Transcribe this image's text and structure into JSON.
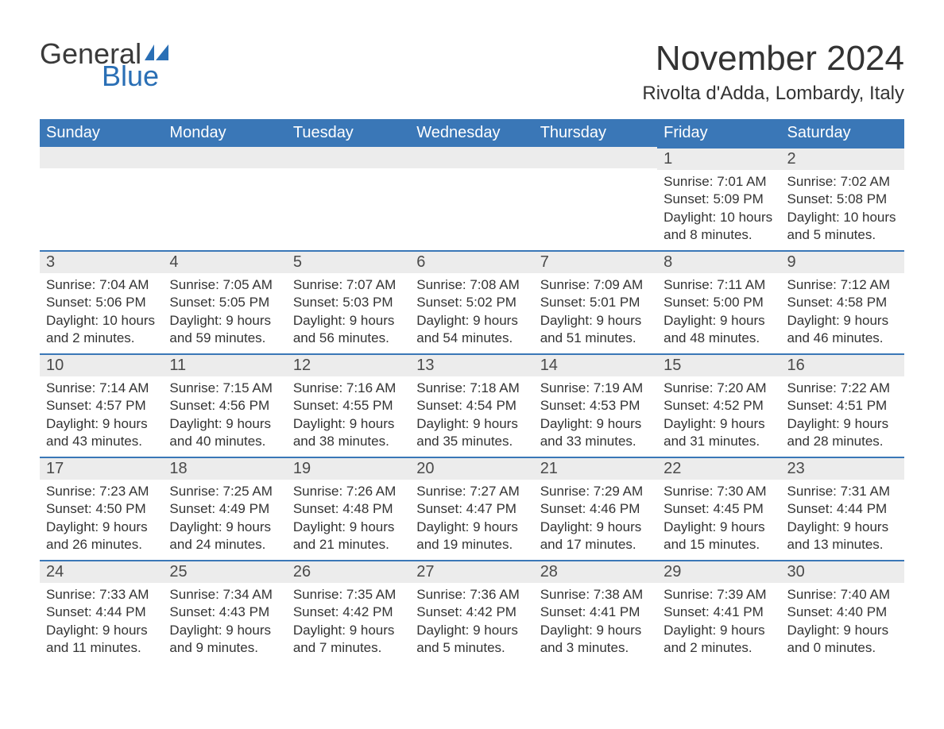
{
  "brand": {
    "part1": "General",
    "part2": "Blue",
    "icon_color": "#2a6fb5"
  },
  "title": "November 2024",
  "location": "Rivolta d'Adda, Lombardy, Italy",
  "colors": {
    "header_bg": "#3a77b7",
    "header_text": "#ffffff",
    "daynum_bg": "#ececec",
    "daynum_border": "#3a77b7",
    "text": "#333333"
  },
  "days_of_week": [
    "Sunday",
    "Monday",
    "Tuesday",
    "Wednesday",
    "Thursday",
    "Friday",
    "Saturday"
  ],
  "weeks": [
    [
      null,
      null,
      null,
      null,
      null,
      {
        "n": "1",
        "sunrise": "Sunrise: 7:01 AM",
        "sunset": "Sunset: 5:09 PM",
        "daylight": "Daylight: 10 hours and 8 minutes."
      },
      {
        "n": "2",
        "sunrise": "Sunrise: 7:02 AM",
        "sunset": "Sunset: 5:08 PM",
        "daylight": "Daylight: 10 hours and 5 minutes."
      }
    ],
    [
      {
        "n": "3",
        "sunrise": "Sunrise: 7:04 AM",
        "sunset": "Sunset: 5:06 PM",
        "daylight": "Daylight: 10 hours and 2 minutes."
      },
      {
        "n": "4",
        "sunrise": "Sunrise: 7:05 AM",
        "sunset": "Sunset: 5:05 PM",
        "daylight": "Daylight: 9 hours and 59 minutes."
      },
      {
        "n": "5",
        "sunrise": "Sunrise: 7:07 AM",
        "sunset": "Sunset: 5:03 PM",
        "daylight": "Daylight: 9 hours and 56 minutes."
      },
      {
        "n": "6",
        "sunrise": "Sunrise: 7:08 AM",
        "sunset": "Sunset: 5:02 PM",
        "daylight": "Daylight: 9 hours and 54 minutes."
      },
      {
        "n": "7",
        "sunrise": "Sunrise: 7:09 AM",
        "sunset": "Sunset: 5:01 PM",
        "daylight": "Daylight: 9 hours and 51 minutes."
      },
      {
        "n": "8",
        "sunrise": "Sunrise: 7:11 AM",
        "sunset": "Sunset: 5:00 PM",
        "daylight": "Daylight: 9 hours and 48 minutes."
      },
      {
        "n": "9",
        "sunrise": "Sunrise: 7:12 AM",
        "sunset": "Sunset: 4:58 PM",
        "daylight": "Daylight: 9 hours and 46 minutes."
      }
    ],
    [
      {
        "n": "10",
        "sunrise": "Sunrise: 7:14 AM",
        "sunset": "Sunset: 4:57 PM",
        "daylight": "Daylight: 9 hours and 43 minutes."
      },
      {
        "n": "11",
        "sunrise": "Sunrise: 7:15 AM",
        "sunset": "Sunset: 4:56 PM",
        "daylight": "Daylight: 9 hours and 40 minutes."
      },
      {
        "n": "12",
        "sunrise": "Sunrise: 7:16 AM",
        "sunset": "Sunset: 4:55 PM",
        "daylight": "Daylight: 9 hours and 38 minutes."
      },
      {
        "n": "13",
        "sunrise": "Sunrise: 7:18 AM",
        "sunset": "Sunset: 4:54 PM",
        "daylight": "Daylight: 9 hours and 35 minutes."
      },
      {
        "n": "14",
        "sunrise": "Sunrise: 7:19 AM",
        "sunset": "Sunset: 4:53 PM",
        "daylight": "Daylight: 9 hours and 33 minutes."
      },
      {
        "n": "15",
        "sunrise": "Sunrise: 7:20 AM",
        "sunset": "Sunset: 4:52 PM",
        "daylight": "Daylight: 9 hours and 31 minutes."
      },
      {
        "n": "16",
        "sunrise": "Sunrise: 7:22 AM",
        "sunset": "Sunset: 4:51 PM",
        "daylight": "Daylight: 9 hours and 28 minutes."
      }
    ],
    [
      {
        "n": "17",
        "sunrise": "Sunrise: 7:23 AM",
        "sunset": "Sunset: 4:50 PM",
        "daylight": "Daylight: 9 hours and 26 minutes."
      },
      {
        "n": "18",
        "sunrise": "Sunrise: 7:25 AM",
        "sunset": "Sunset: 4:49 PM",
        "daylight": "Daylight: 9 hours and 24 minutes."
      },
      {
        "n": "19",
        "sunrise": "Sunrise: 7:26 AM",
        "sunset": "Sunset: 4:48 PM",
        "daylight": "Daylight: 9 hours and 21 minutes."
      },
      {
        "n": "20",
        "sunrise": "Sunrise: 7:27 AM",
        "sunset": "Sunset: 4:47 PM",
        "daylight": "Daylight: 9 hours and 19 minutes."
      },
      {
        "n": "21",
        "sunrise": "Sunrise: 7:29 AM",
        "sunset": "Sunset: 4:46 PM",
        "daylight": "Daylight: 9 hours and 17 minutes."
      },
      {
        "n": "22",
        "sunrise": "Sunrise: 7:30 AM",
        "sunset": "Sunset: 4:45 PM",
        "daylight": "Daylight: 9 hours and 15 minutes."
      },
      {
        "n": "23",
        "sunrise": "Sunrise: 7:31 AM",
        "sunset": "Sunset: 4:44 PM",
        "daylight": "Daylight: 9 hours and 13 minutes."
      }
    ],
    [
      {
        "n": "24",
        "sunrise": "Sunrise: 7:33 AM",
        "sunset": "Sunset: 4:44 PM",
        "daylight": "Daylight: 9 hours and 11 minutes."
      },
      {
        "n": "25",
        "sunrise": "Sunrise: 7:34 AM",
        "sunset": "Sunset: 4:43 PM",
        "daylight": "Daylight: 9 hours and 9 minutes."
      },
      {
        "n": "26",
        "sunrise": "Sunrise: 7:35 AM",
        "sunset": "Sunset: 4:42 PM",
        "daylight": "Daylight: 9 hours and 7 minutes."
      },
      {
        "n": "27",
        "sunrise": "Sunrise: 7:36 AM",
        "sunset": "Sunset: 4:42 PM",
        "daylight": "Daylight: 9 hours and 5 minutes."
      },
      {
        "n": "28",
        "sunrise": "Sunrise: 7:38 AM",
        "sunset": "Sunset: 4:41 PM",
        "daylight": "Daylight: 9 hours and 3 minutes."
      },
      {
        "n": "29",
        "sunrise": "Sunrise: 7:39 AM",
        "sunset": "Sunset: 4:41 PM",
        "daylight": "Daylight: 9 hours and 2 minutes."
      },
      {
        "n": "30",
        "sunrise": "Sunrise: 7:40 AM",
        "sunset": "Sunset: 4:40 PM",
        "daylight": "Daylight: 9 hours and 0 minutes."
      }
    ]
  ]
}
